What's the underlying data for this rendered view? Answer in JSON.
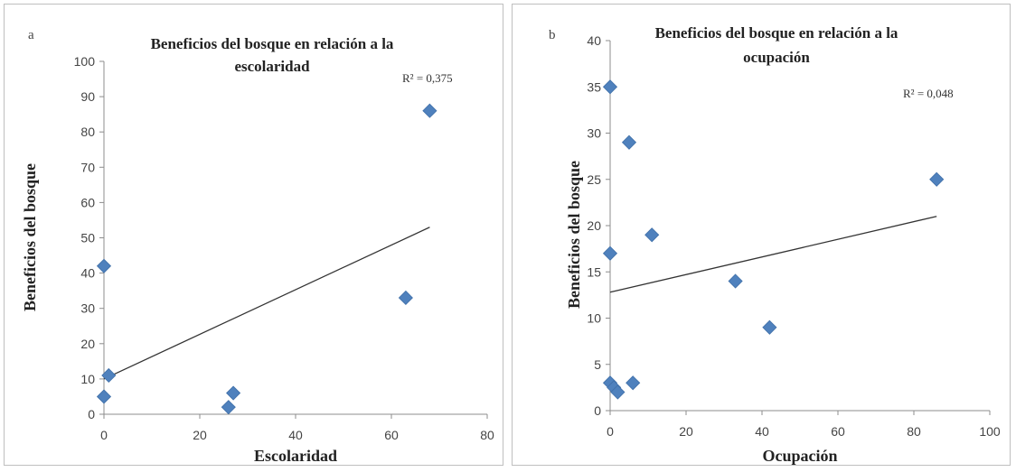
{
  "chart_data": [
    {
      "type": "scatter",
      "panel_letter": "a",
      "title": "Beneficios del bosque en relación a la escolaridad",
      "title_lines": [
        "Beneficios del bosque en relación a la",
        "escolaridad"
      ],
      "xlabel": "Escolaridad",
      "ylabel": "Beneficios del bosque",
      "xlim": [
        0,
        80
      ],
      "ylim": [
        0,
        100
      ],
      "xticks": [
        0,
        20,
        40,
        60,
        80
      ],
      "yticks": [
        0,
        10,
        20,
        30,
        40,
        50,
        60,
        70,
        80,
        90,
        100
      ],
      "grid": false,
      "r2_label": "R² = 0,375",
      "marker_color": "#4f81bd",
      "trendline": {
        "x": [
          0,
          68
        ],
        "y": [
          10,
          53
        ]
      },
      "points": [
        {
          "x": 0,
          "y": 42
        },
        {
          "x": 0,
          "y": 5
        },
        {
          "x": 1,
          "y": 11
        },
        {
          "x": 26,
          "y": 2
        },
        {
          "x": 27,
          "y": 6
        },
        {
          "x": 63,
          "y": 33
        },
        {
          "x": 68,
          "y": 86
        }
      ]
    },
    {
      "type": "scatter",
      "panel_letter": "b",
      "title": "Beneficios del bosque en relación a la ocupación",
      "title_lines": [
        "Beneficios del bosque en relación a la",
        "ocupación"
      ],
      "xlabel": "Ocupación",
      "ylabel": "Beneficios del bosque",
      "xlim": [
        0,
        100
      ],
      "ylim": [
        0,
        40
      ],
      "xticks": [
        0,
        20,
        40,
        60,
        80,
        100
      ],
      "yticks": [
        0,
        5,
        10,
        15,
        20,
        25,
        30,
        35,
        40
      ],
      "grid": false,
      "r2_label": "R² = 0,048",
      "marker_color": "#4f81bd",
      "trendline": {
        "x": [
          0,
          86
        ],
        "y": [
          12.8,
          21
        ]
      },
      "points": [
        {
          "x": 0,
          "y": 35
        },
        {
          "x": 0,
          "y": 17
        },
        {
          "x": 0,
          "y": 3
        },
        {
          "x": 1,
          "y": 2.5
        },
        {
          "x": 2,
          "y": 2
        },
        {
          "x": 5,
          "y": 29
        },
        {
          "x": 6,
          "y": 3
        },
        {
          "x": 11,
          "y": 19
        },
        {
          "x": 33,
          "y": 14
        },
        {
          "x": 42,
          "y": 9
        },
        {
          "x": 86,
          "y": 25
        }
      ]
    }
  ]
}
